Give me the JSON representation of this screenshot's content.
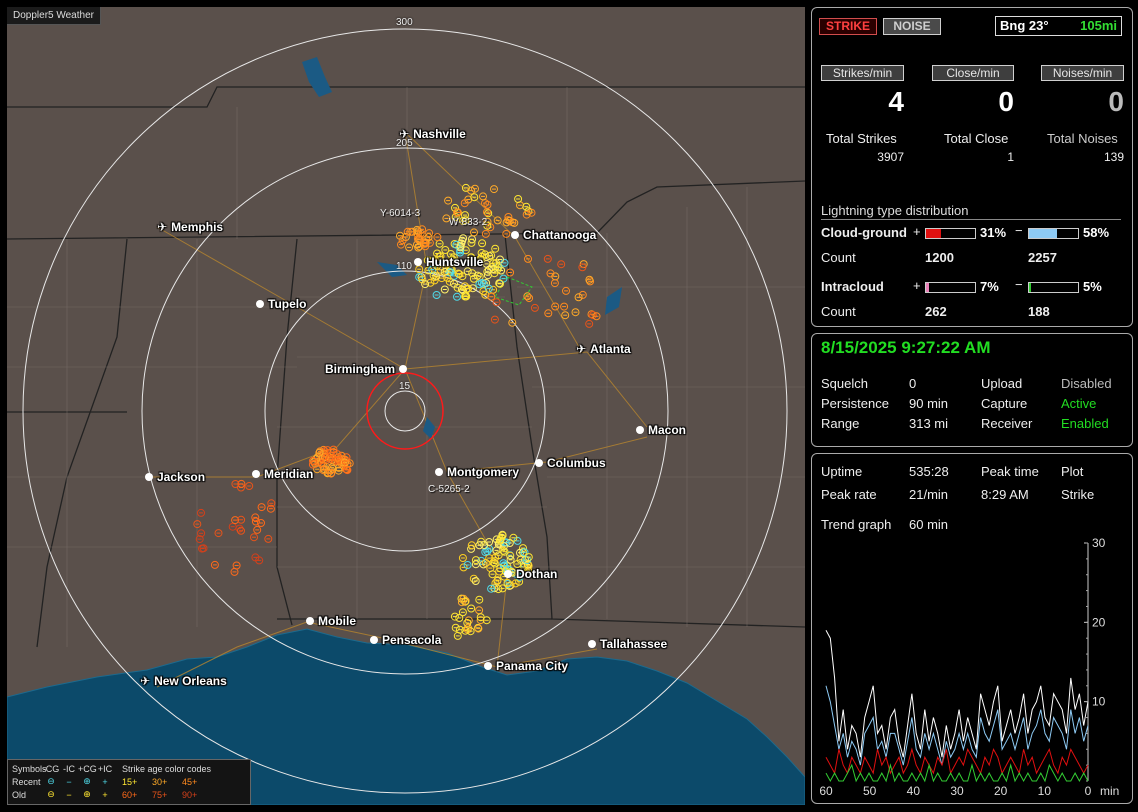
{
  "app_title": "Doppler5 Weather",
  "map": {
    "range_ring_labels": [
      "300",
      "205",
      "110",
      "15"
    ],
    "cities": [
      {
        "name": "Nashville",
        "marker": "airport"
      },
      {
        "name": "Memphis",
        "marker": "airport"
      },
      {
        "name": "Chattanooga",
        "marker": "dot"
      },
      {
        "name": "Huntsville",
        "marker": "dot"
      },
      {
        "name": "Tupelo",
        "marker": "dot"
      },
      {
        "name": "Atlanta",
        "marker": "airport"
      },
      {
        "name": "Birmingham",
        "marker": "dot"
      },
      {
        "name": "Macon",
        "marker": "dot"
      },
      {
        "name": "Jackson",
        "marker": "dot"
      },
      {
        "name": "Meridian",
        "marker": "dot"
      },
      {
        "name": "Montgomery",
        "marker": "dot"
      },
      {
        "name": "Columbus",
        "marker": "dot"
      },
      {
        "name": "Dothan",
        "marker": "dot"
      },
      {
        "name": "Mobile",
        "marker": "dot"
      },
      {
        "name": "Pensacola",
        "marker": "dot"
      },
      {
        "name": "Tallahassee",
        "marker": "dot"
      },
      {
        "name": "Panama City",
        "marker": "dot"
      },
      {
        "name": "New Orleans",
        "marker": "airport"
      }
    ],
    "strike_labels": [
      "Y-6014-3",
      "W-833-2",
      "C-5265-2"
    ],
    "legend": {
      "symbols_label": "Symbols",
      "headers": [
        "-CG",
        "-IC",
        "+CG",
        "+IC"
      ],
      "age_title": "Strike age color codes",
      "recent_label": "Recent",
      "old_label": "Old",
      "recent_ages": [
        "15+",
        "30+",
        "45+"
      ],
      "old_ages": [
        "60+",
        "75+",
        "90+"
      ],
      "recent_symbols": [
        "⊖",
        "−",
        "⊕",
        "+"
      ],
      "old_symbols": [
        "⊖",
        "−",
        "⊕",
        "+"
      ]
    }
  },
  "panel1": {
    "strike_button": "STRIKE",
    "noise_button": "NOISE",
    "bearing": "Bng 23°",
    "range": "105mi",
    "rate_labels": [
      "Strikes/min",
      "Close/min",
      "Noises/min"
    ],
    "rate_values": [
      "4",
      "0",
      "0"
    ],
    "total_labels": [
      "Total Strikes",
      "Total Close",
      "Total Noises"
    ],
    "total_values": [
      "3907",
      "1",
      "139"
    ],
    "distribution_title": "Lightning type distribution",
    "cloud_ground_label": "Cloud-ground",
    "intracloud_label": "Intracloud",
    "count_label": "Count",
    "cg_pos": {
      "sign": "+",
      "pct": "31%",
      "fraction": 0.31,
      "count": "1200",
      "color": "#e01010"
    },
    "cg_neg": {
      "sign": "−",
      "pct": "58%",
      "fraction": 0.58,
      "count": "2257",
      "color": "#8ecbf5"
    },
    "ic_pos": {
      "sign": "+",
      "pct": "7%",
      "fraction": 0.07,
      "count": "262",
      "color": "#e880b8"
    },
    "ic_neg": {
      "sign": "−",
      "pct": "5%",
      "fraction": 0.05,
      "count": "188",
      "color": "#33cc33"
    }
  },
  "panel2": {
    "datetime": "8/15/2025 9:27:22 AM",
    "squelch_label": "Squelch",
    "squelch_value": "0",
    "persistence_label": "Persistence",
    "persistence_value": "90 min",
    "range_label": "Range",
    "range_value": "313 mi",
    "upload_label": "Upload",
    "upload_value": "Disabled",
    "capture_label": "Capture",
    "capture_value": "Active",
    "receiver_label": "Receiver",
    "receiver_value": "Enabled"
  },
  "panel3": {
    "uptime_label": "Uptime",
    "uptime_value": "535:28",
    "peak_time_label": "Peak time",
    "peak_time_value": "8:29 AM",
    "plot_label": "Plot",
    "plot_value": "Strike",
    "peak_rate_label": "Peak rate",
    "peak_rate_value": "21/min",
    "trend_label": "Trend graph",
    "trend_value": "60 min"
  },
  "chart_data": {
    "type": "line",
    "x_ticks": [
      "60",
      "50",
      "40",
      "30",
      "20",
      "10",
      "0"
    ],
    "x_unit": "min",
    "y_ticks": [
      "30",
      "20",
      "10"
    ],
    "ylim": [
      0,
      30
    ],
    "series": [
      {
        "color": "#ffffff",
        "values": [
          19,
          18,
          13,
          5,
          9,
          4,
          7,
          6,
          3,
          8,
          10,
          12,
          6,
          7,
          4,
          8,
          9,
          5,
          3,
          7,
          11,
          6,
          4,
          9,
          5,
          8,
          6,
          3,
          7,
          4,
          6,
          9,
          5,
          8,
          6,
          4,
          11,
          9,
          7,
          10,
          12,
          5,
          7,
          9,
          6,
          8,
          11,
          6,
          9,
          10,
          12,
          8,
          7,
          11,
          10,
          9,
          6,
          13,
          9,
          11,
          7,
          10
        ]
      },
      {
        "color": "#8ecbf5",
        "values": [
          12,
          10,
          7,
          4,
          6,
          3,
          5,
          4,
          2,
          6,
          7,
          8,
          4,
          5,
          3,
          6,
          6,
          4,
          2,
          5,
          8,
          4,
          3,
          6,
          4,
          6,
          4,
          2,
          5,
          3,
          4,
          6,
          4,
          6,
          4,
          3,
          8,
          6,
          5,
          7,
          9,
          4,
          5,
          6,
          4,
          6,
          8,
          4,
          6,
          7,
          9,
          6,
          5,
          8,
          7,
          6,
          4,
          9,
          6,
          8,
          5,
          7
        ]
      },
      {
        "color": "#e01010",
        "values": [
          3,
          2,
          1,
          4,
          2,
          1,
          3,
          2,
          1,
          3,
          2,
          1,
          4,
          2,
          3,
          1,
          2,
          3,
          1,
          2,
          4,
          2,
          1,
          3,
          2,
          1,
          3,
          2,
          4,
          1,
          2,
          3,
          2,
          4,
          3,
          2,
          1,
          3,
          2,
          4,
          3,
          1,
          2,
          3,
          2,
          1,
          4,
          2,
          3,
          1,
          2,
          3,
          4,
          2,
          1,
          3,
          2,
          4,
          3,
          2,
          1,
          2
        ]
      },
      {
        "color": "#33cc33",
        "values": [
          1,
          0,
          1,
          0,
          0,
          1,
          2,
          0,
          1,
          0,
          1,
          0,
          0,
          1,
          0,
          2,
          0,
          1,
          0,
          0,
          1,
          0,
          1,
          0,
          2,
          0,
          1,
          0,
          0,
          1,
          0,
          1,
          0,
          0,
          2,
          0,
          1,
          0,
          1,
          0,
          0,
          1,
          0,
          2,
          0,
          1,
          0,
          1,
          0,
          0,
          1,
          0,
          2,
          1,
          0,
          1,
          0,
          0,
          1,
          0,
          1,
          0
        ]
      }
    ]
  }
}
